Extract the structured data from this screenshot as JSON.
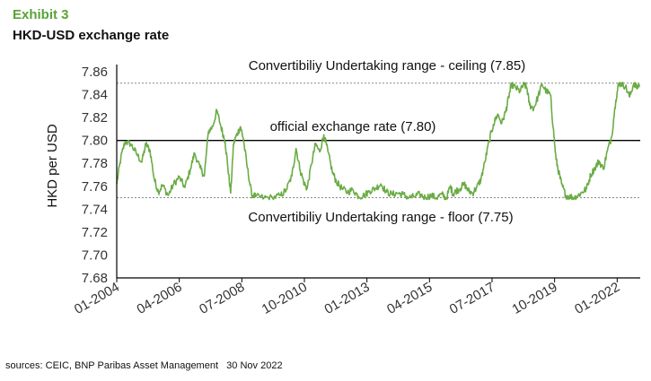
{
  "header": {
    "exhibit": "Exhibit 3",
    "title": "HKD-USD exchange rate"
  },
  "footer": {
    "source": "sources: CEIC, BNP Paribas Asset Management   30 Nov 2022"
  },
  "colors": {
    "accent": "#5aa336",
    "line": "#6aac45",
    "axis": "#000000"
  },
  "chart_data": {
    "type": "line",
    "title": "HKD-USD exchange rate",
    "ylabel": "HKD per USD",
    "xlabel": "",
    "ylim": [
      7.68,
      7.86
    ],
    "xlim": [
      2004.0,
      2022.83
    ],
    "y_ticks": [
      "7.86",
      "7.84",
      "7.82",
      "7.80",
      "7.78",
      "7.76",
      "7.74",
      "7.72",
      "7.70",
      "7.68"
    ],
    "x_ticks": [
      {
        "label": "01-2004",
        "x": 2004.0
      },
      {
        "label": "04-2006",
        "x": 2006.25
      },
      {
        "label": "07-2008",
        "x": 2008.5
      },
      {
        "label": "10-2010",
        "x": 2010.75
      },
      {
        "label": "01-2013",
        "x": 2013.0
      },
      {
        "label": "04-2015",
        "x": 2015.25
      },
      {
        "label": "07-2017",
        "x": 2017.5
      },
      {
        "label": "10-2019",
        "x": 2019.75
      },
      {
        "label": "01-2022",
        "x": 2022.0
      }
    ],
    "grid": false,
    "reference_lines": [
      {
        "label": "Convertibiliy Undertaking range - ceiling (7.85)",
        "y": 7.85,
        "style": "dotted"
      },
      {
        "label": "official exchange rate (7.80)",
        "y": 7.8,
        "style": "solid"
      },
      {
        "label": "Convertibiliy Undertaking range - floor (7.75)",
        "y": 7.75,
        "style": "dotted"
      }
    ],
    "series": [
      {
        "x": [
          2004.0,
          2004.15,
          2004.3,
          2004.5,
          2004.7,
          2004.9,
          2005.05,
          2005.2,
          2005.35,
          2005.5,
          2005.65,
          2005.85,
          2006.05,
          2006.25,
          2006.45,
          2006.65,
          2006.8,
          2007.0,
          2007.15,
          2007.3,
          2007.45,
          2007.6,
          2007.75,
          2007.9,
          2008.0,
          2008.1,
          2008.2,
          2008.3,
          2008.45,
          2008.55,
          2008.7,
          2008.85,
          2009.0,
          2009.3,
          2009.6,
          2009.9,
          2010.1,
          2010.3,
          2010.45,
          2010.6,
          2010.75,
          2010.85,
          2011.0,
          2011.15,
          2011.3,
          2011.45,
          2011.6,
          2011.75,
          2011.9,
          2012.1,
          2012.3,
          2012.5,
          2012.7,
          2012.9,
          2013.1,
          2013.3,
          2013.5,
          2013.7,
          2013.9,
          2014.1,
          2014.3,
          2014.5,
          2014.7,
          2014.9,
          2015.1,
          2015.3,
          2015.5,
          2015.7,
          2015.85,
          2016.0,
          2016.1,
          2016.2,
          2016.35,
          2016.5,
          2016.65,
          2016.8,
          2016.95,
          2017.1,
          2017.25,
          2017.4,
          2017.55,
          2017.7,
          2017.85,
          2018.0,
          2018.1,
          2018.2,
          2018.35,
          2018.5,
          2018.65,
          2018.75,
          2018.85,
          2019.0,
          2019.15,
          2019.3,
          2019.45,
          2019.6,
          2019.7,
          2019.8,
          2019.9,
          2020.0,
          2020.15,
          2020.3,
          2020.45,
          2020.6,
          2020.75,
          2020.9,
          2021.05,
          2021.2,
          2021.35,
          2021.5,
          2021.65,
          2021.8,
          2021.95,
          2022.05,
          2022.15,
          2022.3,
          2022.45,
          2022.6,
          2022.7,
          2022.8
        ],
        "values": [
          7.762,
          7.785,
          7.799,
          7.797,
          7.789,
          7.781,
          7.797,
          7.791,
          7.766,
          7.755,
          7.761,
          7.752,
          7.762,
          7.768,
          7.759,
          7.775,
          7.789,
          7.776,
          7.769,
          7.808,
          7.812,
          7.826,
          7.812,
          7.799,
          7.776,
          7.754,
          7.797,
          7.804,
          7.812,
          7.802,
          7.776,
          7.753,
          7.751,
          7.75,
          7.75,
          7.752,
          7.757,
          7.769,
          7.793,
          7.774,
          7.762,
          7.758,
          7.779,
          7.797,
          7.79,
          7.805,
          7.79,
          7.773,
          7.764,
          7.758,
          7.755,
          7.757,
          7.751,
          7.752,
          7.756,
          7.758,
          7.762,
          7.755,
          7.753,
          7.754,
          7.753,
          7.75,
          7.751,
          7.753,
          7.75,
          7.752,
          7.75,
          7.753,
          7.749,
          7.76,
          7.753,
          7.756,
          7.758,
          7.762,
          7.756,
          7.754,
          7.759,
          7.766,
          7.782,
          7.8,
          7.814,
          7.823,
          7.815,
          7.826,
          7.838,
          7.849,
          7.846,
          7.843,
          7.849,
          7.846,
          7.831,
          7.828,
          7.838,
          7.849,
          7.843,
          7.84,
          7.811,
          7.784,
          7.772,
          7.762,
          7.752,
          7.751,
          7.75,
          7.752,
          7.755,
          7.758,
          7.77,
          7.776,
          7.782,
          7.775,
          7.791,
          7.803,
          7.835,
          7.849,
          7.85,
          7.847,
          7.838,
          7.85,
          7.846,
          7.849
        ]
      }
    ]
  }
}
